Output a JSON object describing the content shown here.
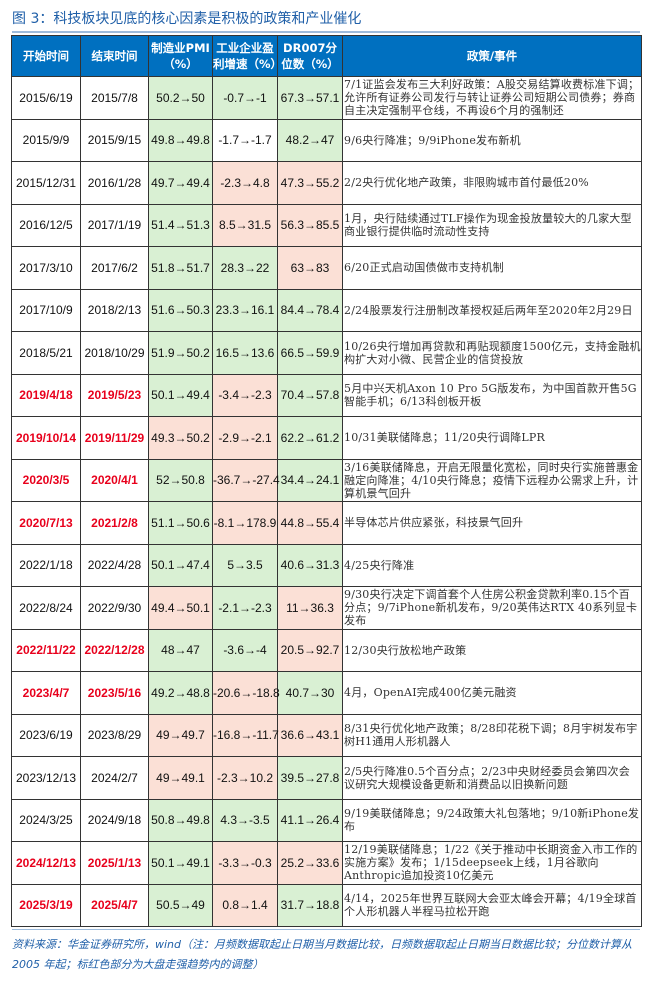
{
  "title": "图 3：科技板块见底的核心因素是积极的政策和产业催化",
  "headers": [
    "开始时间",
    "结束时间",
    "制造业PMI（%）",
    "工业企业盈利增速（%）",
    "DR007分位数（%）",
    "政策/事件"
  ],
  "colors": {
    "header_bg": "#0070C0",
    "green": "#d9f0d3",
    "red_fill": "#fbe0d6",
    "highlight_text": "#e8001c",
    "title": "#1f5fa8"
  },
  "rows": [
    {
      "start": "2015/6/19",
      "end": "2015/7/8",
      "pmi": "50.2→50",
      "profit": "-0.7→-1",
      "dr007": "67.3→57.1",
      "event": "7/1证监会发布三大利好政策：A股交易结算收费标准下调；允许所有证券公司发行与转让证券公司短期公司债券；券商自主决定强制平仓线，不再设6个月的强制还",
      "highlight": false,
      "fills": [
        "g",
        "g",
        "g"
      ]
    },
    {
      "start": "2015/9/9",
      "end": "2015/9/15",
      "pmi": "49.8→49.8",
      "profit": "-1.7→-1.7",
      "dr007": "48.2→47",
      "event": "9/6央行降准；9/9iPhone发布新机",
      "highlight": false,
      "fills": [
        "g",
        "w",
        "g"
      ]
    },
    {
      "start": "2015/12/31",
      "end": "2016/1/28",
      "pmi": "49.7→49.4",
      "profit": "-2.3→4.8",
      "dr007": "47.3→55.2",
      "event": "2/2央行优化地产政策，非限购城市首付最低20%",
      "highlight": false,
      "fills": [
        "g",
        "r",
        "r"
      ]
    },
    {
      "start": "2016/12/5",
      "end": "2017/1/19",
      "pmi": "51.4→51.3",
      "profit": "8.5→31.5",
      "dr007": "56.3→85.5",
      "event": "1月，央行陆续通过TLF操作为现金投放量较大的几家大型商业银行提供临时流动性支持",
      "highlight": false,
      "fills": [
        "g",
        "r",
        "r"
      ]
    },
    {
      "start": "2017/3/10",
      "end": "2017/6/2",
      "pmi": "51.8→51.7",
      "profit": "28.3→22",
      "dr007": "63→83",
      "event": "6/20正式启动国债做市支持机制",
      "highlight": false,
      "fills": [
        "g",
        "g",
        "r"
      ]
    },
    {
      "start": "2017/10/9",
      "end": "2018/2/13",
      "pmi": "51.6→50.3",
      "profit": "23.3→16.1",
      "dr007": "84.4→78.4",
      "event": "2/24股票发行注册制改革授权延后两年至2020年2月29日",
      "highlight": false,
      "fills": [
        "g",
        "g",
        "g"
      ]
    },
    {
      "start": "2018/5/21",
      "end": "2018/10/29",
      "pmi": "51.9→50.2",
      "profit": "16.5→13.6",
      "dr007": "66.5→59.9",
      "event": "10/26央行增加再贷款和再贴现额度1500亿元，支持金融机构扩大对小微、民营企业的信贷投放",
      "highlight": false,
      "fills": [
        "g",
        "g",
        "g"
      ]
    },
    {
      "start": "2019/4/18",
      "end": "2019/5/23",
      "pmi": "50.1→49.4",
      "profit": "-3.4→-2.3",
      "dr007": "70.4→57.8",
      "event": "5月中兴天机Axon 10 Pro 5G版发布，为中国首款开售5G智能手机；6/13科创板开板",
      "highlight": true,
      "fills": [
        "g",
        "r",
        "g"
      ]
    },
    {
      "start": "2019/10/14",
      "end": "2019/11/29",
      "pmi": "49.3→50.2",
      "profit": "-2.9→-2.1",
      "dr007": "62.2→61.2",
      "event": "10/31美联储降息；11/20央行调降LPR",
      "highlight": true,
      "fills": [
        "r",
        "r",
        "g"
      ]
    },
    {
      "start": "2020/3/5",
      "end": "2020/4/1",
      "pmi": "52→50.8",
      "profit": "-36.7→-27.4",
      "dr007": "34.4→24.1",
      "event": "3/16美联储降息，开启无限量化宽松，同时央行实施普惠金融定向降准；4/10央行降息；疫情下远程办公需求上升，计算机景气回升",
      "highlight": true,
      "fills": [
        "g",
        "r",
        "g"
      ]
    },
    {
      "start": "2020/7/13",
      "end": "2021/2/8",
      "pmi": "51.1→50.6",
      "profit": "-8.1→178.9",
      "dr007": "44.8→55.4",
      "event": "半导体芯片供应紧张，科技景气回升",
      "highlight": true,
      "fills": [
        "g",
        "r",
        "r"
      ]
    },
    {
      "start": "2022/1/18",
      "end": "2022/4/28",
      "pmi": "50.1→47.4",
      "profit": "5→3.5",
      "dr007": "40.6→31.3",
      "event": "4/25央行降准",
      "highlight": false,
      "fills": [
        "g",
        "g",
        "g"
      ]
    },
    {
      "start": "2022/8/24",
      "end": "2022/9/30",
      "pmi": "49.4→50.1",
      "profit": "-2.1→-2.3",
      "dr007": "11→36.3",
      "event": "9/30央行决定下调首套个人住房公积金贷款利率0.15个百分点；9/7iPhone新机发布，9/20英伟达RTX 40系列显卡发布",
      "highlight": false,
      "fills": [
        "r",
        "g",
        "r"
      ]
    },
    {
      "start": "2022/11/22",
      "end": "2022/12/28",
      "pmi": "48→47",
      "profit": "-3.6→-4",
      "dr007": "20.5→92.7",
      "event": "12/30央行放松地产政策",
      "highlight": true,
      "fills": [
        "g",
        "g",
        "r"
      ]
    },
    {
      "start": "2023/4/7",
      "end": "2023/5/16",
      "pmi": "49.2→48.8",
      "profit": "-20.6→-18.8",
      "dr007": "40.7→30",
      "event": "4月，OpenAI完成400亿美元融资",
      "highlight": true,
      "fills": [
        "g",
        "r",
        "g"
      ]
    },
    {
      "start": "2023/6/19",
      "end": "2023/8/29",
      "pmi": "49→49.7",
      "profit": "-16.8→-11.7",
      "dr007": "36.6→43.1",
      "event": "8/31央行优化地产政策；8/28印花税下调；8月宇树发布宇树H1通用人形机器人",
      "highlight": false,
      "fills": [
        "r",
        "r",
        "r"
      ]
    },
    {
      "start": "2023/12/13",
      "end": "2024/2/7",
      "pmi": "49→49.1",
      "profit": "-2.3→10.2",
      "dr007": "39.5→27.8",
      "event": "2/5央行降准0.5个百分点；2/23中央财经委员会第四次会议研究大规模设备更新和消费品以旧换新问题",
      "highlight": false,
      "fills": [
        "r",
        "r",
        "g"
      ]
    },
    {
      "start": "2024/3/25",
      "end": "2024/9/18",
      "pmi": "50.8→49.8",
      "profit": "4.3→-3.5",
      "dr007": "41.1→26.4",
      "event": "9/19美联储降息；9/24政策大礼包落地；9/10新iPhone发布",
      "highlight": false,
      "fills": [
        "g",
        "g",
        "g"
      ]
    },
    {
      "start": "2024/12/13",
      "end": "2025/1/13",
      "pmi": "50.1→49.1",
      "profit": "-3.3→-0.3",
      "dr007": "25.2→33.6",
      "event": "12/19美联储降息；1/22《关于推动中长期资金入市工作的实施方案》发布；1/15deepseek上线，1月谷歌向Anthropic追加投资10亿美元",
      "highlight": true,
      "fills": [
        "g",
        "r",
        "r"
      ]
    },
    {
      "start": "2025/3/19",
      "end": "2025/4/7",
      "pmi": "50.5→49",
      "profit": "0.8→1.4",
      "dr007": "31.7→18.8",
      "event": "4/14，2025年世界互联网大会亚太峰会开幕；4/19全球首个人形机器人半程马拉松开跑",
      "highlight": true,
      "fills": [
        "g",
        "r",
        "g"
      ]
    }
  ],
  "note": "资料来源：华金证券研究所，wind（注：月频数据取起止日期当月数据比较，日频数据取起止日期当日数据比较；分位数计算从2005 年起；标红色部分为大盘走强趋势内的调整）"
}
